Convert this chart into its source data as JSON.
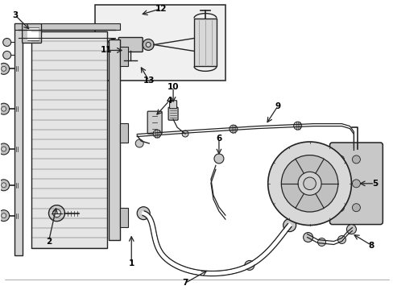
{
  "bg_color": "#ffffff",
  "line_color": "#222222",
  "label_color": "#000000",
  "inset_bg": "#f0f0f0",
  "inset_border": "#333333",
  "fig_w": 4.89,
  "fig_h": 3.6,
  "dpi": 100
}
